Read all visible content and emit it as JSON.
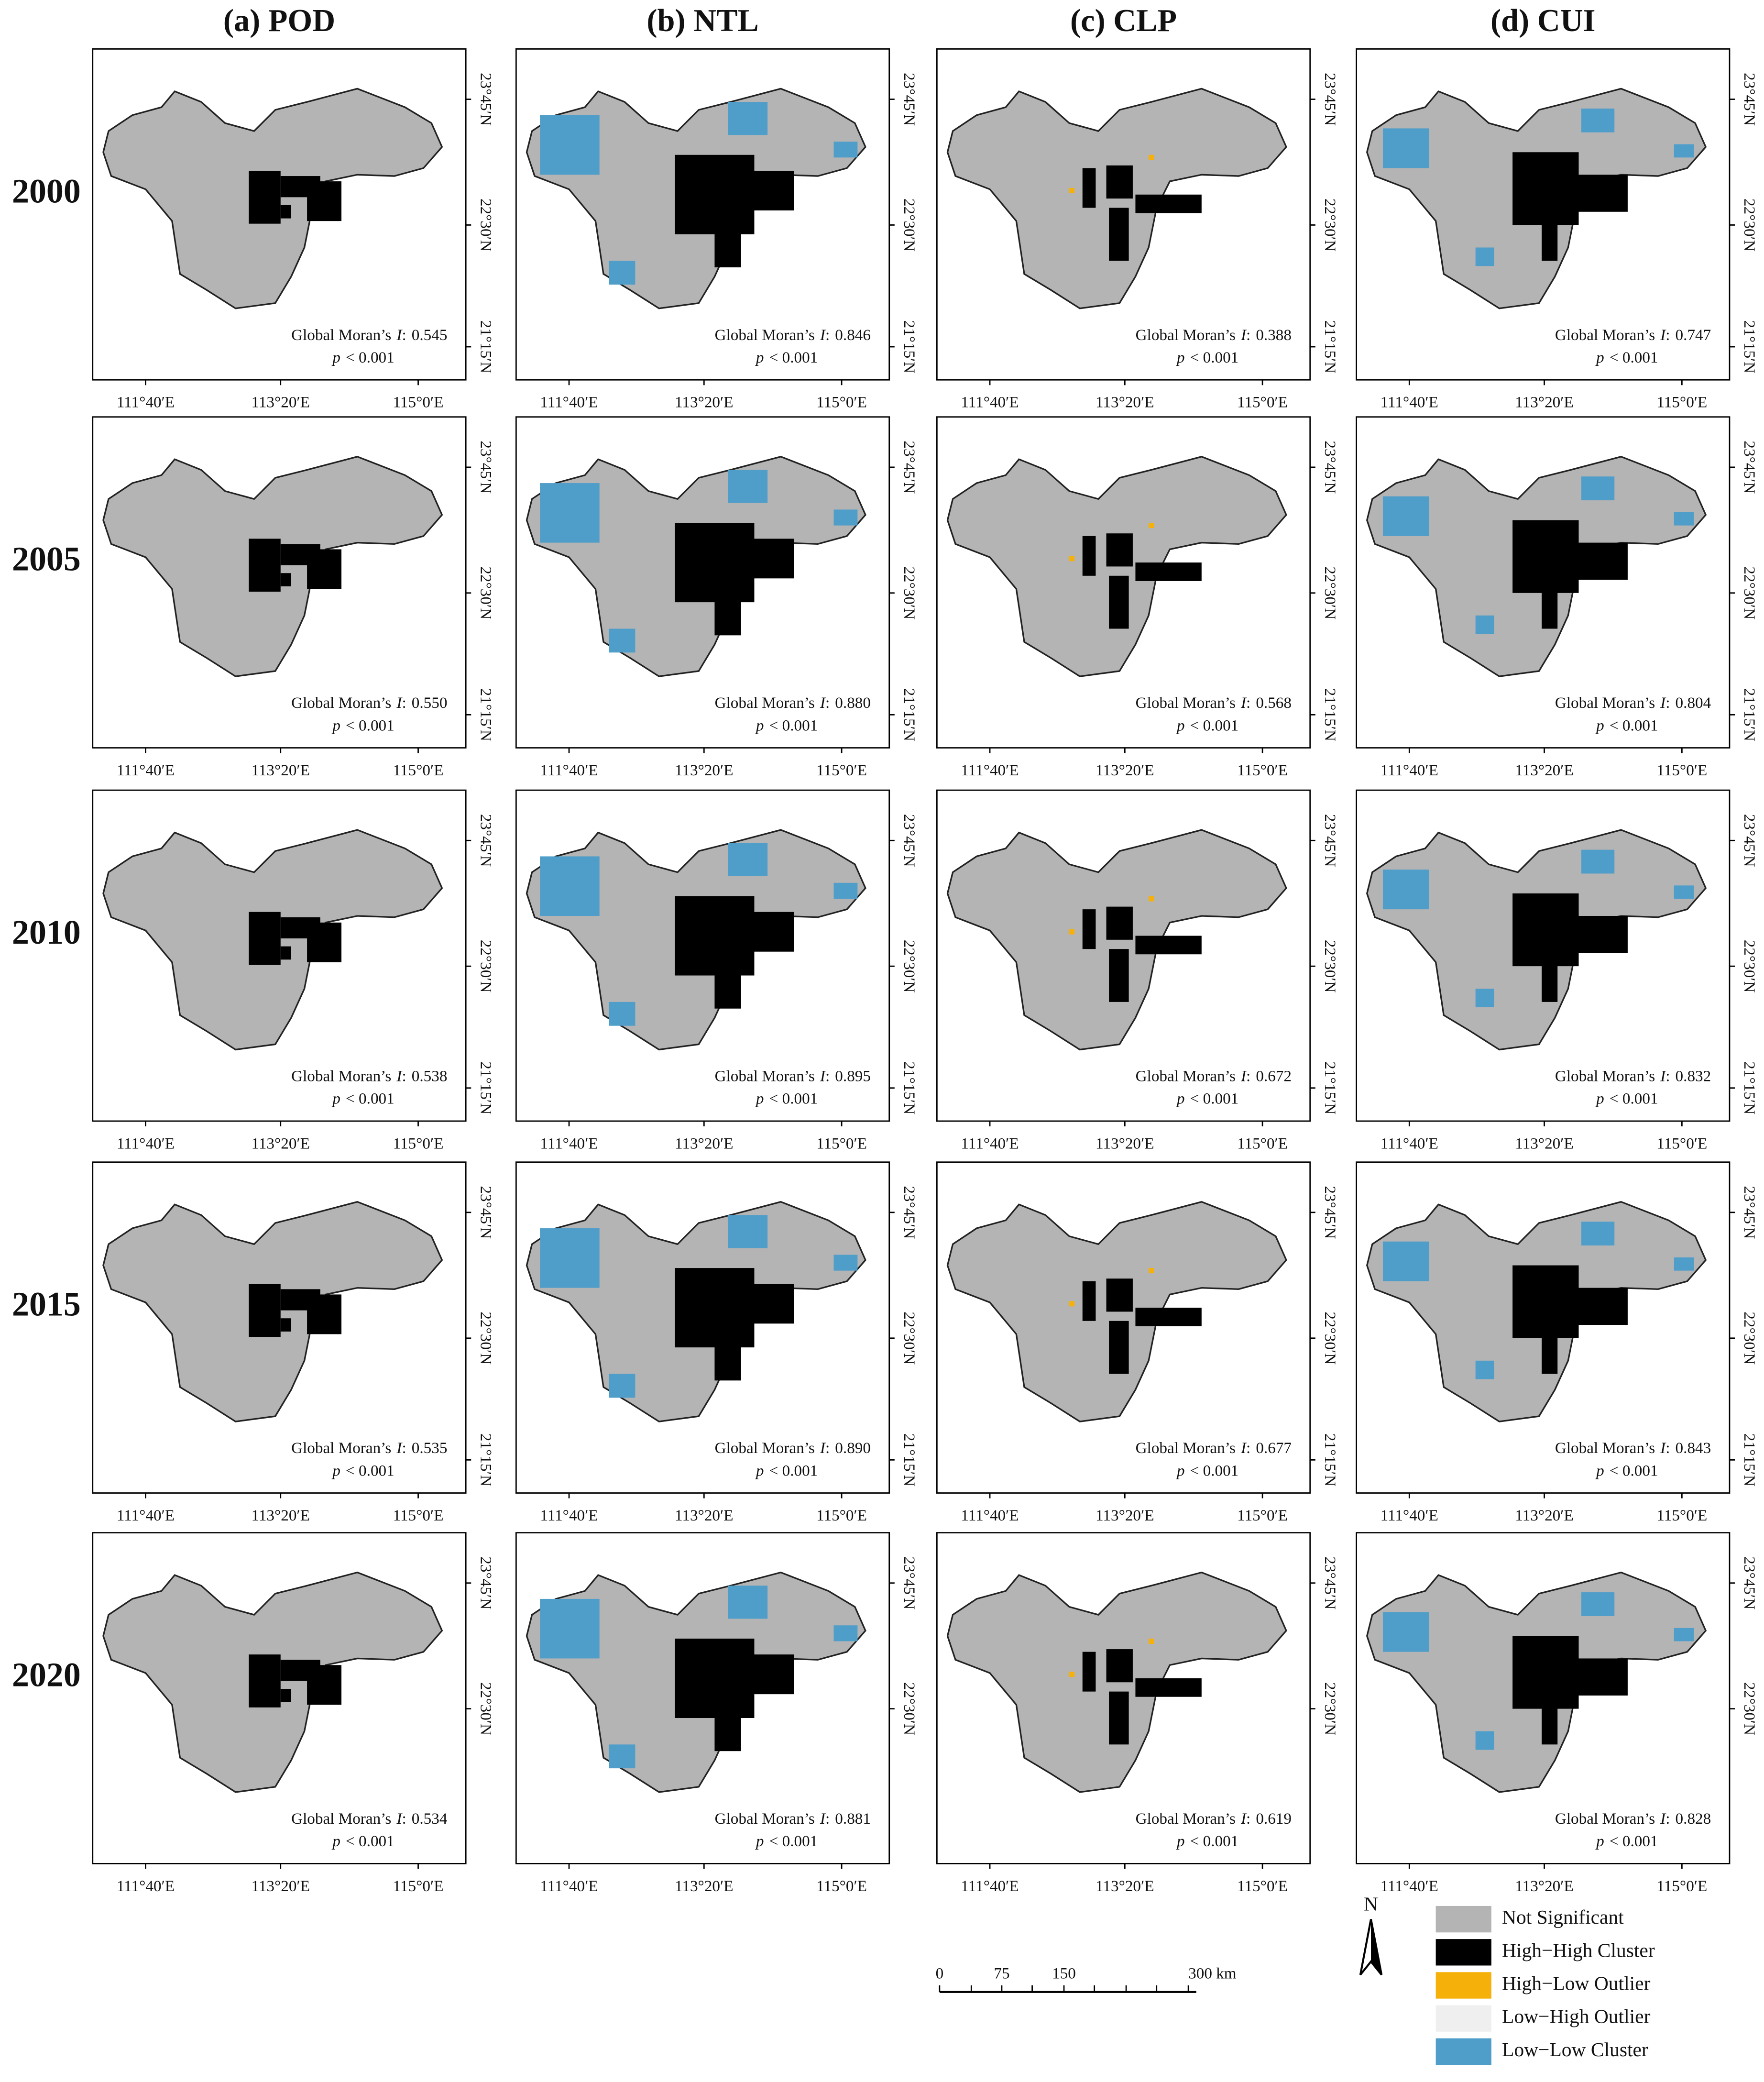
{
  "columns": [
    "(a) POD",
    "(b) NTL",
    "(c) CLP",
    "(d) CUI"
  ],
  "rows": [
    {
      "year": "2000",
      "lat_ticks": [
        "23°45′N",
        "22°30′N",
        "21°15′N"
      ],
      "moran": [
        "0.545",
        "0.846",
        "0.388",
        "0.747"
      ]
    },
    {
      "year": "2005",
      "lat_ticks": [
        "23°45′N",
        "22°30′N",
        "21°15′N"
      ],
      "moran": [
        "0.550",
        "0.880",
        "0.568",
        "0.804"
      ]
    },
    {
      "year": "2010",
      "lat_ticks": [
        "23°45′N",
        "22°30′N",
        "21°15′N"
      ],
      "moran": [
        "0.538",
        "0.895",
        "0.672",
        "0.832"
      ]
    },
    {
      "year": "2015",
      "lat_ticks": [
        "23°45′N",
        "22°30′N",
        "21°15′N"
      ],
      "moran": [
        "0.535",
        "0.890",
        "0.677",
        "0.843"
      ]
    },
    {
      "year": "2020",
      "lat_ticks": [
        "23°45′N",
        "22°30′N"
      ],
      "moran": [
        "0.534",
        "0.881",
        "0.619",
        "0.828"
      ]
    }
  ],
  "lon_ticks": [
    "111°40′E",
    "113°20′E",
    "115°0′E"
  ],
  "moran_label": "Global Moran’s",
  "moran_symbol": "I",
  "moran_colon": ":",
  "p_symbol": "p",
  "p_text": "< 0.001",
  "legend": [
    {
      "label": "Not Significant",
      "color": "#b4b4b4"
    },
    {
      "label": "High−High Cluster",
      "color": "#000000"
    },
    {
      "label": "High−Low Outlier",
      "color": "#f5b00a"
    },
    {
      "label": "Low−High Outlier",
      "color": "#efefef"
    },
    {
      "label": "Low−Low Cluster",
      "color": "#4f9dc9"
    }
  ],
  "scale_bar": [
    "0",
    "75",
    "150",
    "300 km"
  ],
  "north": "N"
}
